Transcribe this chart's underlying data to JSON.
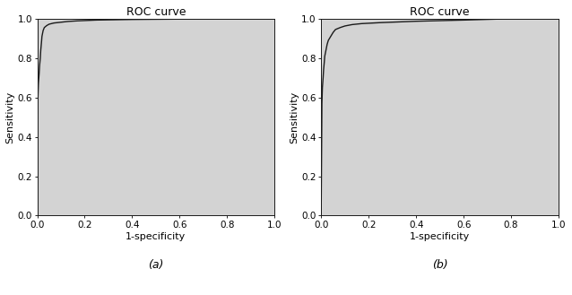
{
  "title": "ROC curve",
  "xlabel": "1-specificity",
  "ylabel": "Sensitivity",
  "xlim": [
    0.0,
    1.0
  ],
  "ylim": [
    0.0,
    1.0
  ],
  "xticks": [
    0.0,
    0.2,
    0.4,
    0.6,
    0.8,
    1.0
  ],
  "yticks": [
    0.0,
    0.2,
    0.4,
    0.6,
    0.8,
    1.0
  ],
  "background_color": "#d3d3d3",
  "line_color": "#1a1a1a",
  "fig_background": "#ffffff",
  "subplot_label_a": "(a)",
  "subplot_label_b": "(b)",
  "curve_a_x": [
    0.0,
    0.0,
    0.003,
    0.005,
    0.008,
    0.01,
    0.013,
    0.015,
    0.018,
    0.02,
    0.025,
    0.03,
    0.04,
    0.05,
    0.07,
    0.1,
    0.13,
    0.17,
    0.25,
    0.4,
    0.6,
    0.8,
    1.0
  ],
  "curve_a_y": [
    0.0,
    0.47,
    0.6,
    0.67,
    0.72,
    0.76,
    0.8,
    0.84,
    0.88,
    0.91,
    0.94,
    0.955,
    0.965,
    0.972,
    0.978,
    0.982,
    0.986,
    0.989,
    0.993,
    0.996,
    0.998,
    1.0,
    1.0
  ],
  "curve_b_x": [
    0.0,
    0.0,
    0.003,
    0.005,
    0.008,
    0.01,
    0.013,
    0.015,
    0.02,
    0.025,
    0.03,
    0.04,
    0.05,
    0.06,
    0.08,
    0.1,
    0.13,
    0.17,
    0.25,
    0.4,
    0.6,
    0.8,
    1.0
  ],
  "curve_b_y": [
    0.0,
    0.05,
    0.57,
    0.65,
    0.7,
    0.74,
    0.78,
    0.81,
    0.84,
    0.87,
    0.89,
    0.91,
    0.93,
    0.945,
    0.955,
    0.963,
    0.97,
    0.975,
    0.98,
    0.987,
    0.993,
    1.0,
    1.0
  ],
  "title_fontsize": 9,
  "label_fontsize": 8,
  "tick_fontsize": 7.5,
  "subplot_label_fontsize": 9,
  "line_width": 1.0
}
